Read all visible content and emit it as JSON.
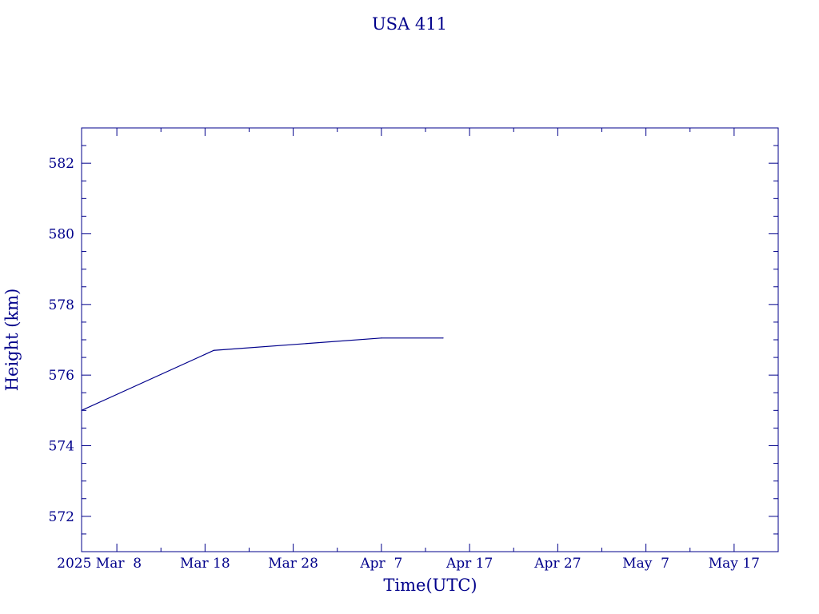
{
  "chart_data": {
    "type": "line",
    "title": "USA 411",
    "xlabel": "Time(UTC)",
    "ylabel": "Height (km)",
    "x_tick_labels": [
      "2025 Mar  8",
      "Mar 18",
      "Mar 28",
      "Apr  7",
      "Apr 17",
      "Apr 27",
      "May  7",
      "May 17"
    ],
    "y_tick_labels": [
      "572",
      "574",
      "576",
      "578",
      "580",
      "582"
    ],
    "xlim": [
      "2025-03-04",
      "2025-05-22"
    ],
    "ylim": [
      571,
      583
    ],
    "grid": false,
    "color": "#00008b",
    "series": [
      {
        "x": [
          "2025-03-04",
          "2025-03-19",
          "2025-04-07",
          "2025-04-14"
        ],
        "y": [
          575.0,
          576.7,
          577.05,
          577.05
        ]
      }
    ]
  }
}
